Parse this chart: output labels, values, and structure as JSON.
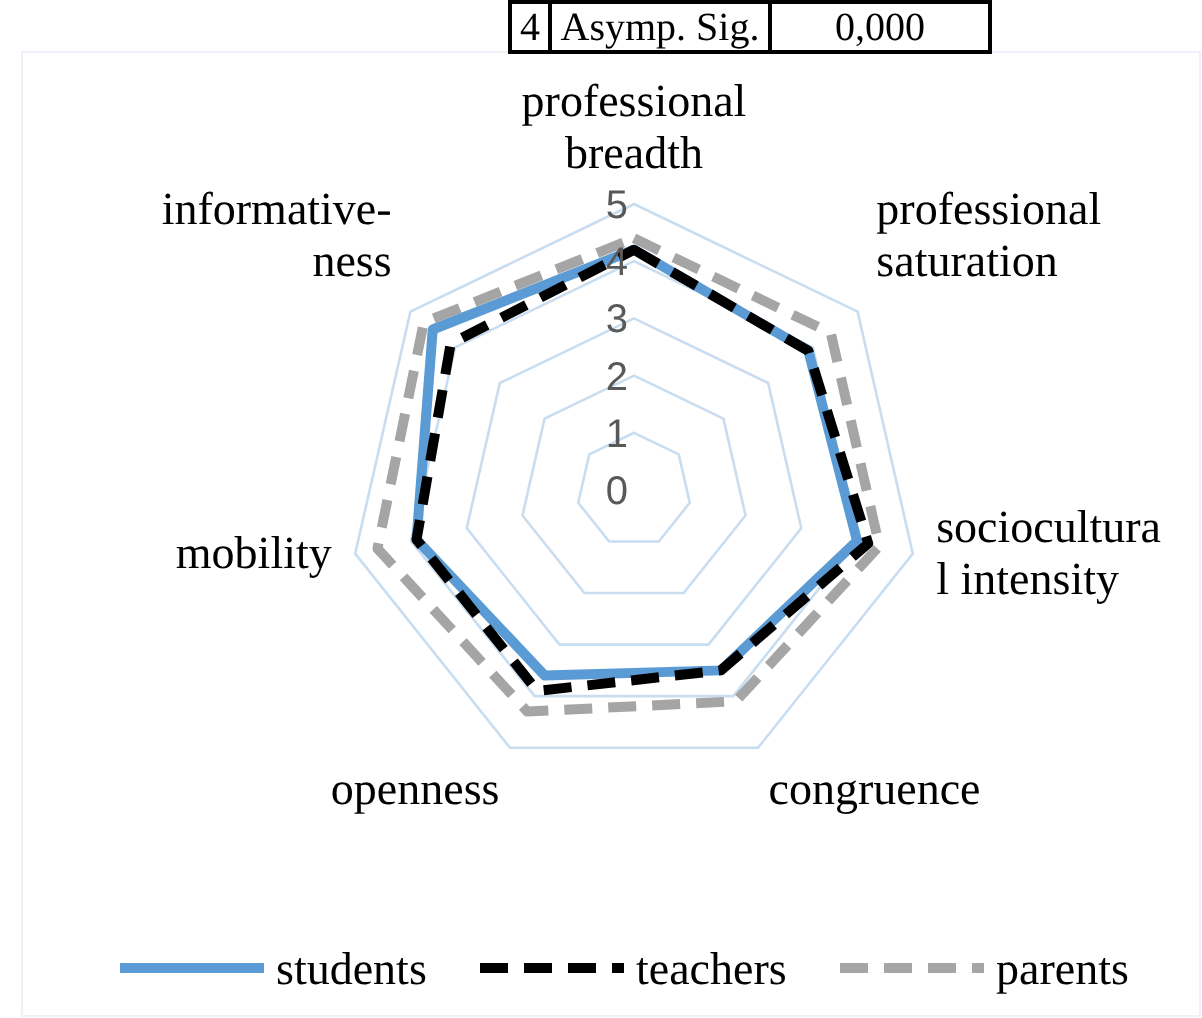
{
  "chart_data": {
    "type": "radar",
    "categories": [
      "professional\nbreadth",
      "professional\nsaturation",
      "sociocultura\nl intensity",
      "congruence",
      "openness",
      "mobility",
      "informative-\nness"
    ],
    "series": [
      {
        "name": "students",
        "color": "#5b9bd5",
        "line_style": "solid",
        "values": [
          4.2,
          3.9,
          4.0,
          3.5,
          3.6,
          3.9,
          4.5
        ]
      },
      {
        "name": "teachers",
        "color": "#000000",
        "line_style": "dashed",
        "values": [
          4.2,
          3.9,
          4.2,
          3.5,
          3.9,
          3.9,
          4.1
        ]
      },
      {
        "name": "parents",
        "color": "#a5a5a5",
        "line_style": "dashed",
        "values": [
          4.4,
          4.4,
          4.4,
          4.1,
          4.3,
          4.6,
          4.7
        ]
      }
    ],
    "ylim": [
      0,
      5
    ],
    "yticks": [
      0,
      1,
      2,
      3,
      4,
      5
    ],
    "grid": true,
    "legend": "bottom",
    "annotations": [
      "4",
      "Asymp. Sig.",
      "0,000"
    ]
  }
}
